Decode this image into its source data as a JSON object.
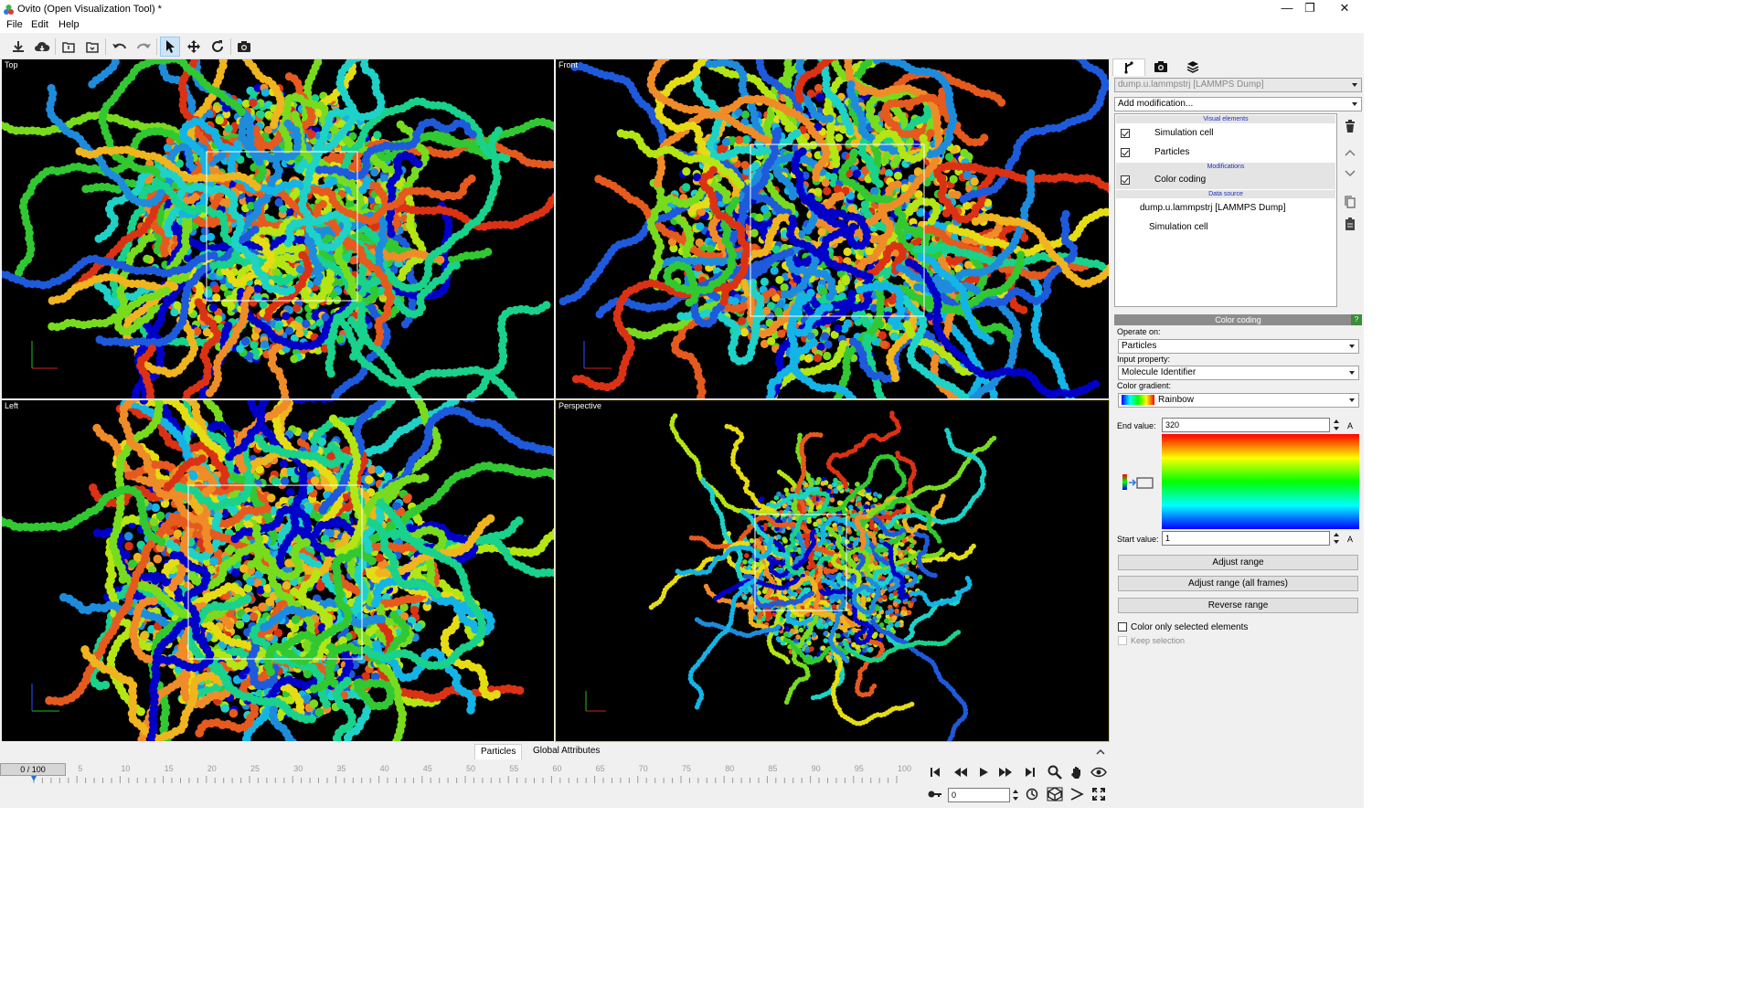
{
  "window": {
    "title": "Ovito (Open Visualization Tool) *",
    "controls": [
      "minimize-icon",
      "restore-icon",
      "close-icon"
    ]
  },
  "menu": {
    "items": [
      "File",
      "Edit",
      "Help"
    ]
  },
  "toolbar": {
    "buttons": [
      "import-file-icon",
      "import-remote-icon",
      "load-session-icon",
      "save-session-icon",
      "undo-icon",
      "redo-icon",
      "select-mode-icon",
      "move-mode-icon",
      "rotate-mode-icon",
      "render-icon"
    ],
    "active": "select-mode-icon"
  },
  "viewports": {
    "top": {
      "label": "Top"
    },
    "front": {
      "label": "Front"
    },
    "left": {
      "label": "Left"
    },
    "perspective": {
      "label": "Perspective"
    }
  },
  "palette": [
    "#0000c8",
    "#1e5adc",
    "#1e8cdc",
    "#14b4e6",
    "#1ed2c8",
    "#19d28c",
    "#32c832",
    "#78dc1e",
    "#b4e614",
    "#e6dc14",
    "#f0b41e",
    "#f08c28",
    "#e65a1e",
    "#dc3214"
  ],
  "panel": {
    "tabs": [
      "pipeline-icon",
      "render-settings-icon",
      "layers-icon"
    ],
    "pipeline_selector": "dump.u.lammpstrj [LAMMPS Dump]",
    "add_modification": "Add modification...",
    "pipeline": {
      "visual_elements_header": "Visual elements",
      "visual_elements": [
        {
          "label": "Simulation cell",
          "checked": true
        },
        {
          "label": "Particles",
          "checked": true
        }
      ],
      "modifications_header": "Modifications",
      "modifications": [
        {
          "label": "Color coding",
          "checked": true
        }
      ],
      "data_source_header": "Data source",
      "data_source": "dump.u.lammpstrj [LAMMPS Dump]",
      "data_source_child": "Simulation cell"
    },
    "color_coding": {
      "header": "Color coding",
      "help": "?",
      "operate_on_label": "Operate on:",
      "operate_on": "Particles",
      "input_property_label": "Input property:",
      "input_property": "Molecule Identifier",
      "gradient_label": "Color gradient:",
      "gradient": "Rainbow",
      "end_value_label": "End value:",
      "end_value": "320",
      "start_value_label": "Start value:",
      "start_value": "1",
      "unit_lock": "A",
      "adjust_range": "Adjust range",
      "adjust_range_all": "Adjust range (all frames)",
      "reverse_range": "Reverse range",
      "only_selected": "Color only selected elements",
      "keep_selection": "Keep selection"
    }
  },
  "bottom": {
    "tabs": [
      "Particles",
      "Global Attributes"
    ],
    "frame_indicator": "0 / 100",
    "timeline_ticks": [
      "5",
      "10",
      "15",
      "20",
      "25",
      "30",
      "35",
      "40",
      "45",
      "50",
      "55",
      "60",
      "65",
      "70",
      "75",
      "80",
      "85",
      "90",
      "95",
      "100"
    ],
    "current_frame": 0,
    "max_frame": 100,
    "spinner_value": "0"
  }
}
